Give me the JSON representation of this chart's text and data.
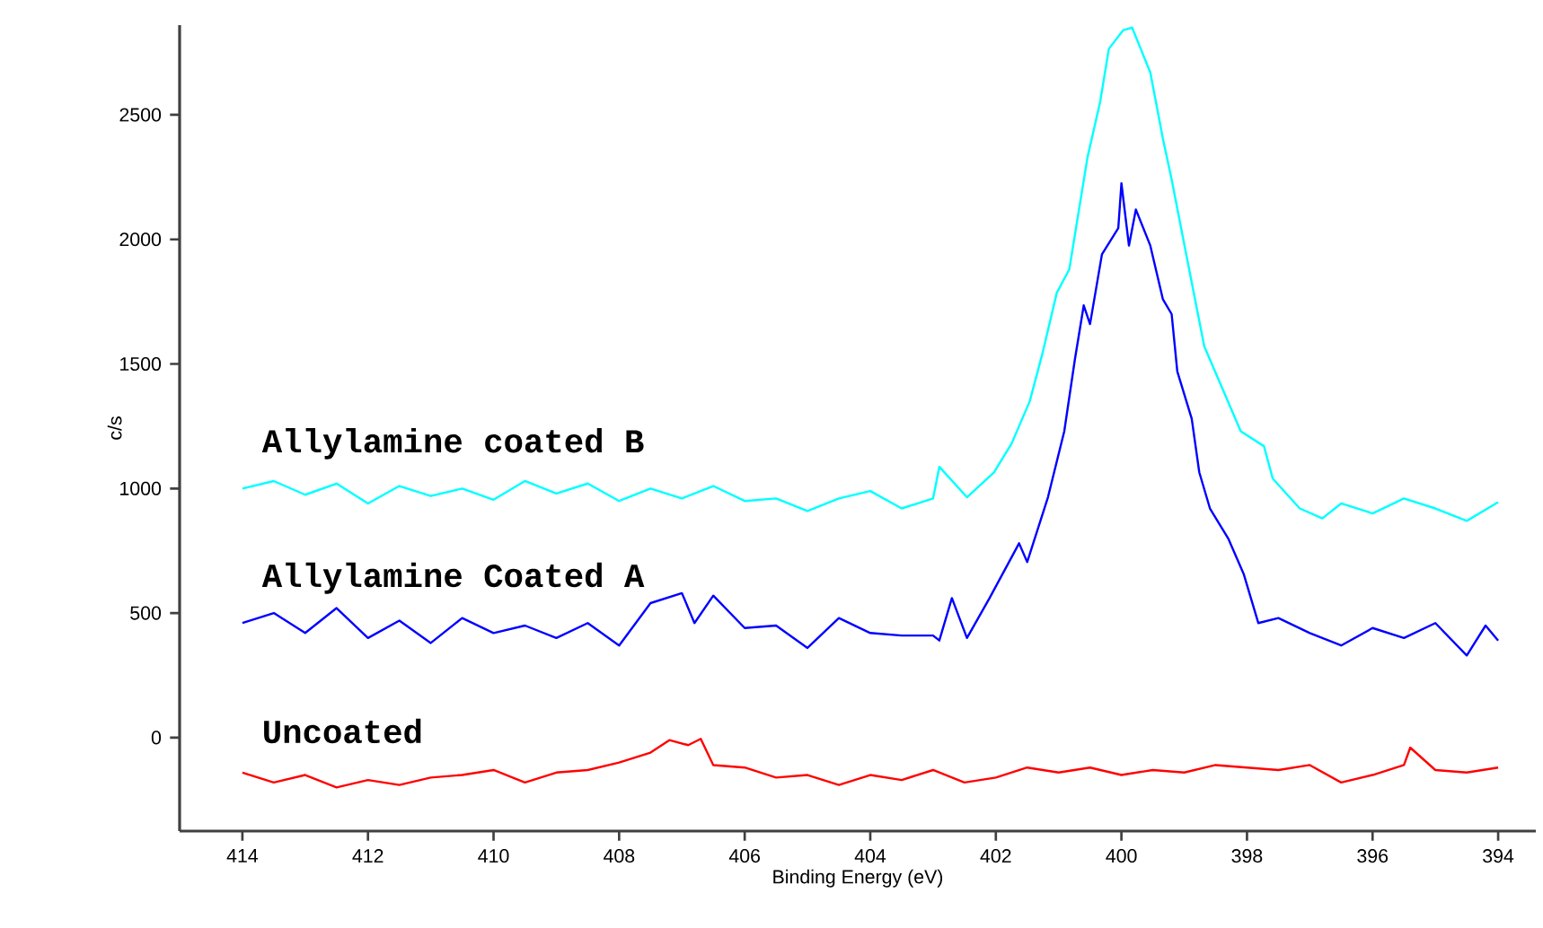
{
  "chart_data": {
    "type": "line",
    "xlabel": "Binding Energy (eV)",
    "ylabel": "c/s",
    "xlim": [
      415,
      393.4
    ],
    "ylim": [
      -375,
      2860
    ],
    "xticks": [
      414,
      412,
      410,
      408,
      406,
      404,
      402,
      400,
      398,
      396,
      394
    ],
    "yticks": [
      0,
      500,
      1000,
      1500,
      2000,
      2500
    ],
    "series": [
      {
        "name": "Allylamine coated B",
        "color": "#00ffff",
        "x": [
          414,
          413.5,
          413,
          412.5,
          412,
          411.5,
          411,
          410.5,
          410,
          409.5,
          409,
          408.5,
          408,
          407.5,
          407,
          406.5,
          406,
          405.5,
          405,
          404.5,
          404,
          403.5,
          403,
          402.9,
          402.46,
          402.03,
          401.75,
          401.46,
          401.26,
          401.03,
          400.83,
          400.54,
          400.34,
          400.2,
          399.97,
          399.83,
          399.54,
          399.34,
          399.2,
          398.96,
          398.68,
          398.39,
          398.1,
          397.73,
          397.59,
          397.16,
          396.8,
          396.5,
          396,
          395.5,
          395,
          394.5,
          394
        ],
        "values": [
          1000,
          1030,
          975,
          1020,
          940,
          1010,
          970,
          1000,
          955,
          1030,
          980,
          1020,
          950,
          1000,
          960,
          1010,
          950,
          960,
          910,
          960,
          990,
          920,
          960,
          1087,
          965,
          1065,
          1180,
          1350,
          1540,
          1785,
          1880,
          2330,
          2550,
          2765,
          2840,
          2850,
          2670,
          2405,
          2240,
          1930,
          1570,
          1400,
          1230,
          1170,
          1040,
          920,
          880,
          940,
          900,
          960,
          920,
          870,
          945
        ]
      },
      {
        "name": "Allylamine Coated A",
        "color": "#0000ff",
        "x": [
          414,
          413.5,
          413,
          412.5,
          412,
          411.5,
          411,
          410.5,
          410,
          409.5,
          409,
          408.5,
          408,
          407.5,
          407,
          406.8,
          406.5,
          406,
          405.5,
          405,
          404.5,
          404,
          403.5,
          403,
          402.9,
          402.7,
          402.46,
          402.1,
          401.63,
          401.5,
          401.17,
          400.91,
          400.74,
          400.6,
          400.5,
          400.31,
          400.05,
          400.0,
          399.88,
          399.77,
          399.54,
          399.34,
          399.2,
          399.11,
          398.88,
          398.76,
          398.59,
          398.3,
          398.05,
          397.82,
          397.5,
          397,
          396.5,
          396,
          395.5,
          395,
          394.5,
          394.2,
          394
        ],
        "values": [
          460,
          500,
          420,
          520,
          400,
          470,
          380,
          480,
          420,
          450,
          400,
          460,
          370,
          540,
          580,
          460,
          570,
          440,
          450,
          360,
          480,
          420,
          410,
          410,
          390,
          560,
          400,
          560,
          780,
          705,
          965,
          1230,
          1520,
          1735,
          1660,
          1940,
          2045,
          2225,
          1975,
          2120,
          1975,
          1760,
          1700,
          1470,
          1280,
          1065,
          920,
          800,
          655,
          460,
          480,
          420,
          370,
          440,
          400,
          460,
          330,
          450,
          390
        ]
      },
      {
        "name": "Uncoated",
        "color": "#ff0000",
        "x": [
          414,
          413.5,
          413,
          412.5,
          412,
          411.5,
          411,
          410.5,
          410,
          409.5,
          409,
          408.5,
          408,
          407.5,
          407.2,
          406.9,
          406.7,
          406.5,
          406,
          405.5,
          405,
          404.5,
          404,
          403.5,
          403,
          402.5,
          402,
          401.5,
          401,
          400.5,
          400,
          399.5,
          399,
          398.5,
          398,
          397.5,
          397,
          396.5,
          396,
          395.5,
          395.4,
          395,
          394.5,
          394
        ],
        "values": [
          -140,
          -180,
          -150,
          -200,
          -170,
          -190,
          -160,
          -150,
          -130,
          -180,
          -140,
          -130,
          -100,
          -60,
          -10,
          -30,
          -5,
          -110,
          -120,
          -160,
          -150,
          -190,
          -150,
          -170,
          -130,
          -180,
          -160,
          -120,
          -140,
          -120,
          -150,
          -130,
          -140,
          -110,
          -120,
          -130,
          -110,
          -180,
          -150,
          -110,
          -40,
          -130,
          -140,
          -120
        ]
      }
    ]
  }
}
